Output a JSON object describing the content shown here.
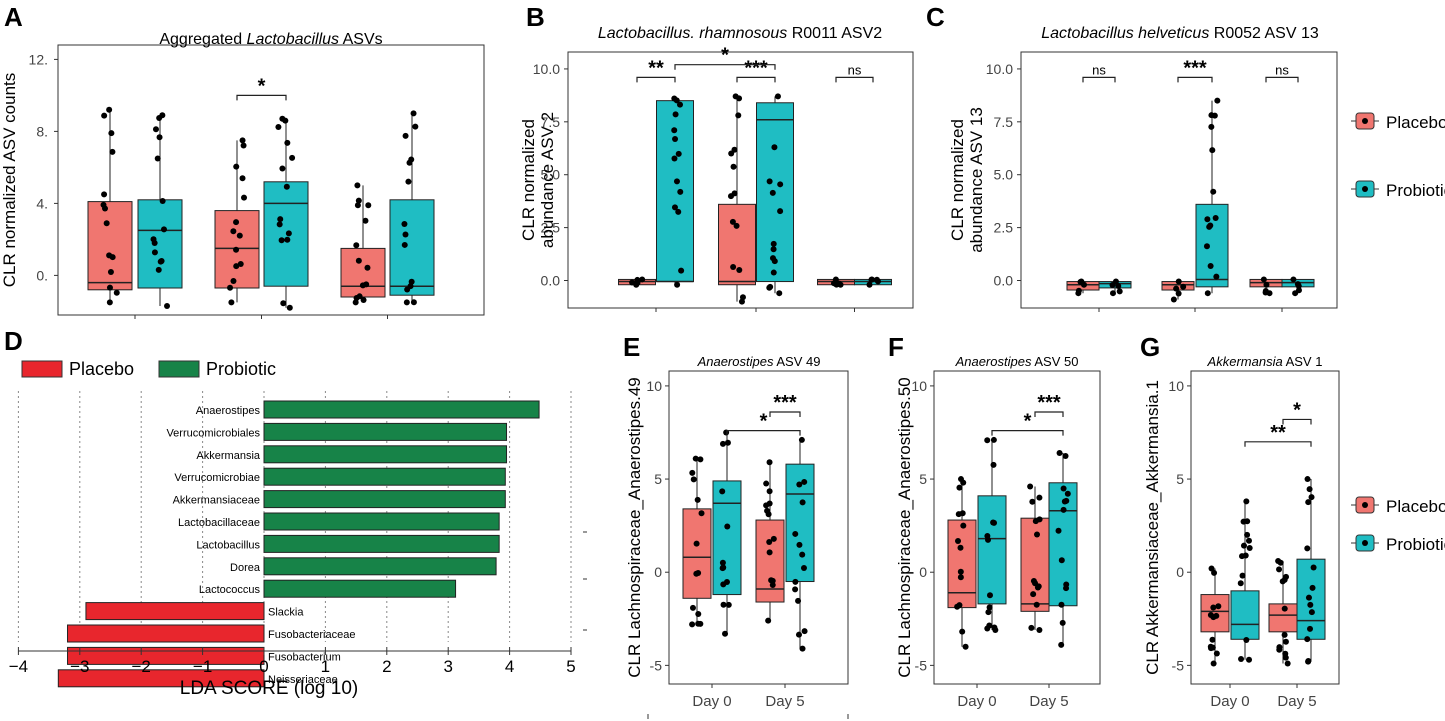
{
  "figure": {
    "panel_letters": [
      "A",
      "B",
      "C",
      "D",
      "E",
      "F",
      "G"
    ],
    "legend_top": {
      "placebo": "Placebo",
      "probiotic": "Probiotic"
    },
    "legend_bottom": {
      "placebo": "Placebo",
      "probiotic": "Probiotic"
    },
    "legend_d": {
      "placebo": "Placebo",
      "probiotic": "Probiotic"
    }
  },
  "colors": {
    "placebo_box": "#f07670",
    "probiotic_box": "#1fbdc3",
    "lda_placebo": "#e8262d",
    "lda_probiotic": "#178348"
  },
  "chart_data": [
    {
      "panel": "A",
      "type": "box",
      "title_parts": [
        "Aggregated ",
        "Lactobacillus",
        " ASVs"
      ],
      "ylabel": "CLR normalized ASV counts",
      "ylim": [
        -2.2,
        12.8
      ],
      "yticks": [
        0,
        4,
        8,
        12
      ],
      "ytick_labels": [
        "0.",
        "4.",
        "8.",
        "12."
      ],
      "groups": [
        {
          "placebo": {
            "q1": -0.8,
            "med": -0.4,
            "q3": 4.1,
            "lo": -1.5,
            "hi": 9.2
          },
          "probiotic": {
            "q1": -0.7,
            "med": 2.5,
            "q3": 4.2,
            "lo": -1.7,
            "hi": 8.9
          }
        },
        {
          "placebo": {
            "q1": -0.7,
            "med": 1.5,
            "q3": 3.6,
            "lo": -1.5,
            "hi": 7.5
          },
          "probiotic": {
            "q1": -0.6,
            "med": 4.0,
            "q3": 5.2,
            "lo": -1.8,
            "hi": 8.7
          }
        },
        {
          "placebo": {
            "q1": -1.2,
            "med": -0.6,
            "q3": 1.5,
            "lo": -1.5,
            "hi": 5.0
          },
          "probiotic": {
            "q1": -1.1,
            "med": -0.6,
            "q3": 4.2,
            "lo": -1.5,
            "hi": 9.0
          }
        }
      ],
      "xlabels": [
        "",
        "",
        ""
      ],
      "sig": [
        {
          "label": "*",
          "from": [
            1,
            0
          ],
          "to": [
            1,
            1
          ],
          "y": 10.0
        }
      ]
    },
    {
      "panel": "B",
      "type": "box",
      "title_parts": [
        "Lactobacillus. rhamnosous",
        " R0011 ASV2"
      ],
      "ylabel": [
        "CLR normalized",
        "abundance ASV 2"
      ],
      "ylim": [
        -1.3,
        10.8
      ],
      "yticks": [
        0,
        2.5,
        5,
        7.5,
        10
      ],
      "ytick_labels": [
        "0.0",
        "2.5",
        "5.0",
        "7.5",
        "10.0"
      ],
      "groups": [
        {
          "placebo": {
            "q1": -0.2,
            "med": -0.05,
            "q3": 0.05,
            "lo": -0.2,
            "hi": 0.05
          },
          "probiotic": {
            "q1": -0.05,
            "med": -0.05,
            "q3": 8.5,
            "lo": -0.2,
            "hi": 8.6
          }
        },
        {
          "placebo": {
            "q1": -0.2,
            "med": -0.05,
            "q3": 3.6,
            "lo": -1.0,
            "hi": 8.7
          },
          "probiotic": {
            "q1": -0.05,
            "med": 7.6,
            "q3": 8.4,
            "lo": -0.6,
            "hi": 8.7
          }
        },
        {
          "placebo": {
            "q1": -0.2,
            "med": -0.05,
            "q3": 0.05,
            "lo": -0.2,
            "hi": 0.05
          },
          "probiotic": {
            "q1": -0.2,
            "med": -0.05,
            "q3": 0.05,
            "lo": -0.2,
            "hi": 0.05
          }
        }
      ],
      "xlabels": [
        "",
        "",
        ""
      ],
      "sig": [
        {
          "label": "**",
          "from": [
            0,
            0
          ],
          "to": [
            0,
            1
          ],
          "y": 9.6
        },
        {
          "label": "***",
          "from": [
            1,
            0
          ],
          "to": [
            1,
            1
          ],
          "y": 9.6
        },
        {
          "label": "*",
          "from": [
            0,
            1
          ],
          "to": [
            1,
            1
          ],
          "y": 10.2
        },
        {
          "label": "ns",
          "from": [
            2,
            0
          ],
          "to": [
            2,
            1
          ],
          "y": 9.6
        }
      ]
    },
    {
      "panel": "C",
      "type": "box",
      "title_parts": [
        "Lactobacillus helveticus",
        " R0052 ASV 13"
      ],
      "ylabel": [
        "CLR normalized",
        "abundance ASV 13"
      ],
      "ylim": [
        -1.3,
        10.8
      ],
      "yticks": [
        0,
        2.5,
        5,
        7.5,
        10
      ],
      "ytick_labels": [
        "0.0",
        "2.5",
        "5.0",
        "7.5",
        "10.0"
      ],
      "groups": [
        {
          "placebo": {
            "q1": -0.45,
            "med": -0.2,
            "q3": -0.05,
            "lo": -0.6,
            "hi": -0.05
          },
          "probiotic": {
            "q1": -0.35,
            "med": -0.15,
            "q3": -0.05,
            "lo": -0.6,
            "hi": -0.05
          }
        },
        {
          "placebo": {
            "q1": -0.45,
            "med": -0.2,
            "q3": -0.05,
            "lo": -0.9,
            "hi": -0.05
          },
          "probiotic": {
            "q1": -0.3,
            "med": 0.05,
            "q3": 3.6,
            "lo": -0.6,
            "hi": 8.5
          }
        },
        {
          "placebo": {
            "q1": -0.3,
            "med": -0.1,
            "q3": 0.05,
            "lo": -0.6,
            "hi": 0.05
          },
          "probiotic": {
            "q1": -0.3,
            "med": -0.1,
            "q3": 0.05,
            "lo": -0.6,
            "hi": 0.05
          }
        }
      ],
      "xlabels": [
        "",
        "",
        ""
      ],
      "sig": [
        {
          "label": "ns",
          "from": [
            0,
            0
          ],
          "to": [
            0,
            1
          ],
          "y": 9.6
        },
        {
          "label": "***",
          "from": [
            1,
            0
          ],
          "to": [
            1,
            1
          ],
          "y": 9.6
        },
        {
          "label": "ns",
          "from": [
            2,
            0
          ],
          "to": [
            2,
            1
          ],
          "y": 9.6
        }
      ]
    },
    {
      "panel": "D",
      "type": "bar",
      "orientation": "horizontal",
      "xlabel": "LDA SCORE (log 10)",
      "xlim": [
        -4,
        5
      ],
      "xticks": [
        -4,
        -3,
        -2,
        -1,
        0,
        1,
        2,
        3,
        4,
        5
      ],
      "xtick_labels": [
        "−4",
        "−3",
        "−2",
        "−1",
        "0",
        "1",
        "2",
        "3",
        "4",
        "5"
      ],
      "categories": [
        "Anaerostipes",
        "Verrucomicrobiales",
        "Akkermansia",
        "Verrucomicrobiae",
        "Akkermansiaceae",
        "Lactobacillaceae",
        "Lactobacillus",
        "Dorea",
        "Lactococcus",
        "Slackia",
        "Fusobacteriaceae",
        "Fusobacterium",
        "Neisseriaceae"
      ],
      "values": [
        4.48,
        3.95,
        3.95,
        3.93,
        3.93,
        3.83,
        3.83,
        3.78,
        3.12,
        -2.9,
        -3.2,
        -3.2,
        -3.35
      ],
      "groups": [
        "Probiotic",
        "Probiotic",
        "Probiotic",
        "Probiotic",
        "Probiotic",
        "Probiotic",
        "Probiotic",
        "Probiotic",
        "Probiotic",
        "Placebo",
        "Placebo",
        "Placebo",
        "Placebo"
      ]
    },
    {
      "panel": "E",
      "type": "box",
      "title_parts": [
        "Anaerostipes",
        " ASV 49"
      ],
      "ylabel": "CLR Lachnospiraceae_Anaerostipes.49",
      "ylim": [
        -6.0,
        10.8
      ],
      "yticks": [
        -5,
        0,
        5,
        10
      ],
      "ytick_labels": [
        "-5",
        "0",
        "5",
        "10"
      ],
      "groups": [
        {
          "placebo": {
            "q1": -1.4,
            "med": 0.8,
            "q3": 3.4,
            "lo": -2.8,
            "hi": 6.1
          },
          "probiotic": {
            "q1": -1.2,
            "med": 3.7,
            "q3": 4.9,
            "lo": -3.3,
            "hi": 7.5
          }
        },
        {
          "placebo": {
            "q1": -1.6,
            "med": -0.9,
            "q3": 2.8,
            "lo": -2.6,
            "hi": 5.9
          },
          "probiotic": {
            "q1": -0.5,
            "med": 4.2,
            "q3": 5.8,
            "lo": -4.1,
            "hi": 7.1
          }
        }
      ],
      "xlabels": [
        "Day 0",
        "Day 5"
      ],
      "sig": [
        {
          "label": "***",
          "from": [
            1,
            0
          ],
          "to": [
            1,
            1
          ],
          "y": 8.6
        },
        {
          "label": "*",
          "from": [
            0,
            1
          ],
          "to": [
            1,
            1
          ],
          "y": 7.6
        }
      ]
    },
    {
      "panel": "F",
      "type": "box",
      "title_parts": [
        "Anaerostipes",
        " ASV 50"
      ],
      "ylabel": "CLR Lachnospiraceae_Anaerostipes.50",
      "ylim": [
        -6.0,
        10.8
      ],
      "yticks": [
        -5,
        0,
        5,
        10
      ],
      "ytick_labels": [
        "-5",
        "0",
        "5",
        "10"
      ],
      "groups": [
        {
          "placebo": {
            "q1": -1.9,
            "med": -1.1,
            "q3": 2.8,
            "lo": -4.0,
            "hi": 5.0
          },
          "probiotic": {
            "q1": -1.7,
            "med": 1.8,
            "q3": 4.1,
            "lo": -3.1,
            "hi": 7.1
          }
        },
        {
          "placebo": {
            "q1": -2.1,
            "med": -1.7,
            "q3": 2.9,
            "lo": -3.1,
            "hi": 4.6
          },
          "probiotic": {
            "q1": -1.8,
            "med": 3.3,
            "q3": 4.8,
            "lo": -3.9,
            "hi": 6.4
          }
        }
      ],
      "xlabels": [
        "Day 0",
        "Day 5"
      ],
      "sig": [
        {
          "label": "***",
          "from": [
            1,
            0
          ],
          "to": [
            1,
            1
          ],
          "y": 8.6
        },
        {
          "label": "*",
          "from": [
            0,
            1
          ],
          "to": [
            1,
            1
          ],
          "y": 7.6
        }
      ]
    },
    {
      "panel": "G",
      "type": "box",
      "title_parts": [
        "Akkermansia",
        " ASV 1"
      ],
      "ylabel": "CLR Akkermansiaceae_Akkermansia.1",
      "ylim": [
        -6.0,
        10.8
      ],
      "yticks": [
        -5,
        0,
        5,
        10
      ],
      "ytick_labels": [
        "-5",
        "0",
        "5",
        "10"
      ],
      "groups": [
        {
          "placebo": {
            "q1": -3.2,
            "med": -2.1,
            "q3": -1.2,
            "lo": -4.9,
            "hi": 0.2
          },
          "probiotic": {
            "q1": -3.6,
            "med": -2.8,
            "q3": -1.0,
            "lo": -4.7,
            "hi": 3.8
          }
        },
        {
          "placebo": {
            "q1": -3.2,
            "med": -2.3,
            "q3": -1.7,
            "lo": -4.9,
            "hi": 0.6
          },
          "probiotic": {
            "q1": -3.6,
            "med": -2.6,
            "q3": 0.7,
            "lo": -4.8,
            "hi": 5.0
          }
        }
      ],
      "xlabels": [
        "Day 0",
        "Day 5"
      ],
      "sig": [
        {
          "label": "*",
          "from": [
            1,
            0
          ],
          "to": [
            1,
            1
          ],
          "y": 8.2
        },
        {
          "label": "**",
          "from": [
            0,
            1
          ],
          "to": [
            1,
            1
          ],
          "y": 7.0
        }
      ]
    }
  ]
}
